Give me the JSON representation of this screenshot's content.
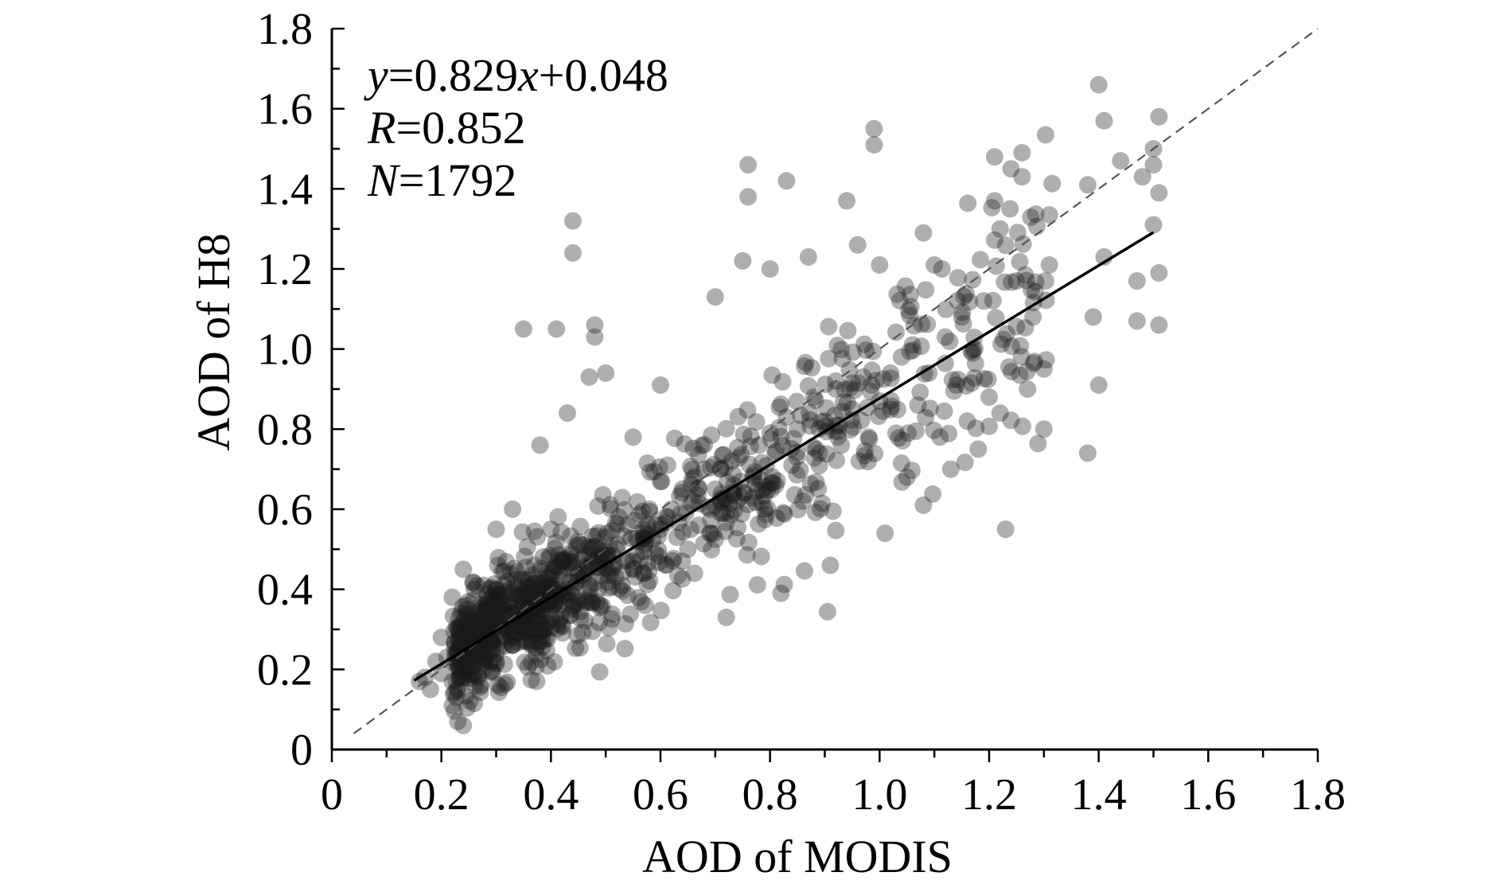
{
  "chart_data": {
    "type": "scatter",
    "xlabel": "AOD of MODIS",
    "ylabel": "AOD of H8",
    "xlim": [
      0,
      1.8
    ],
    "ylim": [
      0,
      1.8
    ],
    "x_ticks": [
      "0",
      "0.2",
      "0.4",
      "0.6",
      "0.8",
      "1.0",
      "1.2",
      "1.4",
      "1.6",
      "1.8"
    ],
    "y_ticks": [
      "0",
      "0.2",
      "0.4",
      "0.6",
      "0.8",
      "1.0",
      "1.2",
      "1.4",
      "1.6",
      "1.8"
    ],
    "annotations": {
      "equation": {
        "lhs": "y",
        "mid": "=0.829",
        "var": "x",
        "rhs": "+0.048"
      },
      "r": {
        "label": "R",
        "value": "=0.852"
      },
      "n": {
        "label": "N",
        "value": "=1792"
      }
    },
    "fit_line": {
      "slope": 0.829,
      "intercept": 0.048,
      "x_range": [
        0.15,
        1.5
      ],
      "color": "#000000"
    },
    "reference_line": {
      "slope": 1,
      "intercept": 0,
      "x_range": [
        0.04,
        1.8
      ],
      "style": "dashed",
      "color": "#555555"
    },
    "point_color": "#1a1a1a",
    "point_opacity": 0.35,
    "grid": false,
    "points_sample": [
      [
        0.16,
        0.17
      ],
      [
        0.17,
        0.18
      ],
      [
        0.18,
        0.15
      ],
      [
        0.19,
        0.22
      ],
      [
        0.2,
        0.19
      ],
      [
        0.2,
        0.28
      ],
      [
        0.21,
        0.23
      ],
      [
        0.22,
        0.17
      ],
      [
        0.22,
        0.38
      ],
      [
        0.23,
        0.21
      ],
      [
        0.23,
        0.07
      ],
      [
        0.24,
        0.06
      ],
      [
        0.24,
        0.45
      ],
      [
        0.25,
        0.29
      ],
      [
        0.25,
        0.24
      ],
      [
        0.26,
        0.21
      ],
      [
        0.26,
        0.4
      ],
      [
        0.27,
        0.26
      ],
      [
        0.27,
        0.31
      ],
      [
        0.28,
        0.23
      ],
      [
        0.28,
        0.36
      ],
      [
        0.29,
        0.29
      ],
      [
        0.29,
        0.27
      ],
      [
        0.3,
        0.33
      ],
      [
        0.3,
        0.24
      ],
      [
        0.3,
        0.55
      ],
      [
        0.31,
        0.35
      ],
      [
        0.31,
        0.28
      ],
      [
        0.32,
        0.3
      ],
      [
        0.32,
        0.42
      ],
      [
        0.33,
        0.31
      ],
      [
        0.33,
        0.26
      ],
      [
        0.33,
        0.6
      ],
      [
        0.34,
        0.36
      ],
      [
        0.34,
        0.29
      ],
      [
        0.35,
        0.33
      ],
      [
        0.35,
        1.05
      ],
      [
        0.36,
        0.38
      ],
      [
        0.36,
        0.27
      ],
      [
        0.37,
        0.35
      ],
      [
        0.37,
        0.46
      ],
      [
        0.38,
        0.32
      ],
      [
        0.38,
        0.76
      ],
      [
        0.39,
        0.4
      ],
      [
        0.39,
        0.3
      ],
      [
        0.4,
        0.37
      ],
      [
        0.4,
        0.55
      ],
      [
        0.41,
        0.34
      ],
      [
        0.41,
        1.05
      ],
      [
        0.42,
        0.42
      ],
      [
        0.42,
        0.31
      ],
      [
        0.43,
        0.39
      ],
      [
        0.43,
        0.84
      ],
      [
        0.44,
        1.32
      ],
      [
        0.44,
        1.24
      ],
      [
        0.45,
        0.44
      ],
      [
        0.45,
        0.37
      ],
      [
        0.46,
        0.51
      ],
      [
        0.47,
        0.41
      ],
      [
        0.47,
        0.93
      ],
      [
        0.48,
        1.06
      ],
      [
        0.48,
        1.03
      ],
      [
        0.49,
        0.47
      ],
      [
        0.49,
        0.36
      ],
      [
        0.5,
        0.53
      ],
      [
        0.5,
        0.94
      ],
      [
        0.51,
        0.44
      ],
      [
        0.52,
        0.5
      ],
      [
        0.53,
        0.41
      ],
      [
        0.54,
        0.56
      ],
      [
        0.55,
        0.47
      ],
      [
        0.55,
        0.78
      ],
      [
        0.56,
        0.52
      ],
      [
        0.57,
        0.44
      ],
      [
        0.58,
        0.6
      ],
      [
        0.59,
        0.49
      ],
      [
        0.6,
        0.55
      ],
      [
        0.6,
        0.91
      ],
      [
        0.61,
        0.46
      ],
      [
        0.62,
        0.6
      ],
      [
        0.63,
        0.53
      ],
      [
        0.64,
        0.65
      ],
      [
        0.65,
        0.5
      ],
      [
        0.66,
        0.62
      ],
      [
        0.67,
        0.56
      ],
      [
        0.68,
        0.7
      ],
      [
        0.69,
        0.54
      ],
      [
        0.7,
        0.65
      ],
      [
        0.7,
        1.13
      ],
      [
        0.71,
        0.59
      ],
      [
        0.72,
        0.33
      ],
      [
        0.73,
        0.72
      ],
      [
        0.74,
        0.62
      ],
      [
        0.75,
        1.22
      ],
      [
        0.76,
        1.46
      ],
      [
        0.76,
        1.38
      ],
      [
        0.77,
        0.68
      ],
      [
        0.78,
        0.76
      ],
      [
        0.79,
        0.6
      ],
      [
        0.8,
        0.79
      ],
      [
        0.8,
        1.2
      ],
      [
        0.81,
        0.66
      ],
      [
        0.82,
        0.39
      ],
      [
        0.83,
        0.83
      ],
      [
        0.83,
        1.42
      ],
      [
        0.84,
        0.71
      ],
      [
        0.85,
        0.8
      ],
      [
        0.86,
        0.62
      ],
      [
        0.87,
        1.23
      ],
      [
        0.88,
        0.88
      ],
      [
        0.89,
        0.74
      ],
      [
        0.9,
        0.82
      ],
      [
        0.91,
        0.46
      ],
      [
        0.92,
        0.9
      ],
      [
        0.93,
        0.76
      ],
      [
        0.94,
        1.37
      ],
      [
        0.95,
        0.85
      ],
      [
        0.96,
        1.26
      ],
      [
        0.97,
        0.93
      ],
      [
        0.98,
        0.78
      ],
      [
        0.99,
        1.55
      ],
      [
        0.99,
        1.51
      ],
      [
        1.0,
        0.87
      ],
      [
        1.0,
        1.21
      ],
      [
        1.01,
        0.54
      ],
      [
        1.02,
        0.94
      ],
      [
        1.03,
        0.79
      ],
      [
        1.04,
        0.98
      ],
      [
        1.05,
        0.68
      ],
      [
        1.06,
        1.01
      ],
      [
        1.07,
        0.86
      ],
      [
        1.08,
        1.29
      ],
      [
        1.08,
        0.61
      ],
      [
        1.09,
        0.94
      ],
      [
        1.1,
        1.21
      ],
      [
        1.11,
        0.78
      ],
      [
        1.12,
        1.03
      ],
      [
        1.13,
        0.7
      ],
      [
        1.14,
        0.91
      ],
      [
        1.15,
        1.08
      ],
      [
        1.16,
        0.82
      ],
      [
        1.17,
        0.99
      ],
      [
        1.18,
        0.75
      ],
      [
        1.19,
        1.12
      ],
      [
        1.2,
        0.88
      ],
      [
        1.21,
        1.48
      ],
      [
        1.21,
        1.37
      ],
      [
        1.22,
        1.3
      ],
      [
        1.22,
        0.84
      ],
      [
        1.23,
        0.55
      ],
      [
        1.24,
        1.45
      ],
      [
        1.25,
        1.17
      ],
      [
        1.26,
        1.49
      ],
      [
        1.26,
        1.43
      ],
      [
        1.27,
        0.9
      ],
      [
        1.28,
        1.08
      ],
      [
        1.3,
        0.95
      ],
      [
        1.3,
        0.8
      ],
      [
        1.31,
        1.21
      ],
      [
        1.38,
        1.41
      ],
      [
        1.38,
        0.74
      ],
      [
        1.39,
        1.08
      ],
      [
        1.4,
        1.66
      ],
      [
        1.4,
        0.91
      ],
      [
        1.41,
        1.57
      ],
      [
        1.41,
        1.23
      ],
      [
        1.44,
        1.47
      ],
      [
        1.47,
        1.17
      ],
      [
        1.47,
        1.07
      ],
      [
        1.48,
        1.43
      ],
      [
        1.5,
        1.5
      ],
      [
        1.5,
        1.46
      ],
      [
        1.51,
        1.58
      ],
      [
        1.51,
        1.39
      ],
      [
        1.51,
        1.19
      ],
      [
        1.51,
        1.06
      ],
      [
        1.5,
        1.31
      ]
    ]
  }
}
